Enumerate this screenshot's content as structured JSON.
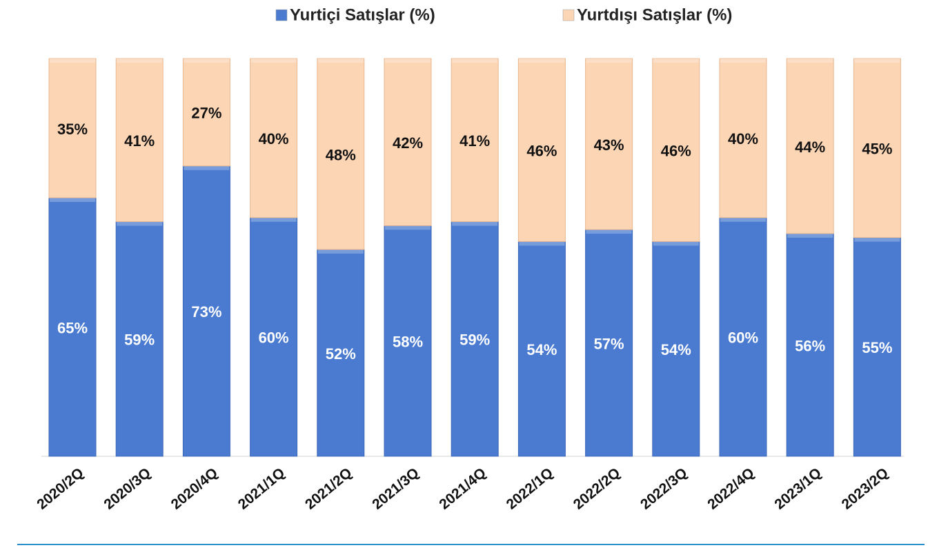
{
  "chart_data": {
    "type": "stacked_bar",
    "categories": [
      "2020/2Q",
      "2020/3Q",
      "2020/4Q",
      "2021/1Q",
      "2021/2Q",
      "2021/3Q",
      "2021/4Q",
      "2022/1Q",
      "2022/2Q",
      "2022/3Q",
      "2022/4Q",
      "2023/1Q",
      "2023/2Q"
    ],
    "series": [
      {
        "name": "Yurtiçi Satışlar (%)",
        "color": "#4a7bd0",
        "values": [
          65,
          59,
          73,
          60,
          52,
          58,
          59,
          54,
          57,
          54,
          60,
          56,
          55
        ],
        "value_labels": [
          "65%",
          "59%",
          "73%",
          "60%",
          "52%",
          "58%",
          "59%",
          "54%",
          "57%",
          "54%",
          "60%",
          "56%",
          "55%"
        ]
      },
      {
        "name": "Yurtdışı Satışlar (%)",
        "color": "#fcd5b5",
        "values": [
          35,
          41,
          27,
          40,
          48,
          42,
          41,
          46,
          43,
          46,
          40,
          44,
          45
        ],
        "value_labels": [
          "35%",
          "41%",
          "27%",
          "40%",
          "48%",
          "42%",
          "41%",
          "46%",
          "43%",
          "46%",
          "40%",
          "44%",
          "45%"
        ]
      }
    ],
    "ylim": [
      0,
      100
    ],
    "legend": "top"
  }
}
